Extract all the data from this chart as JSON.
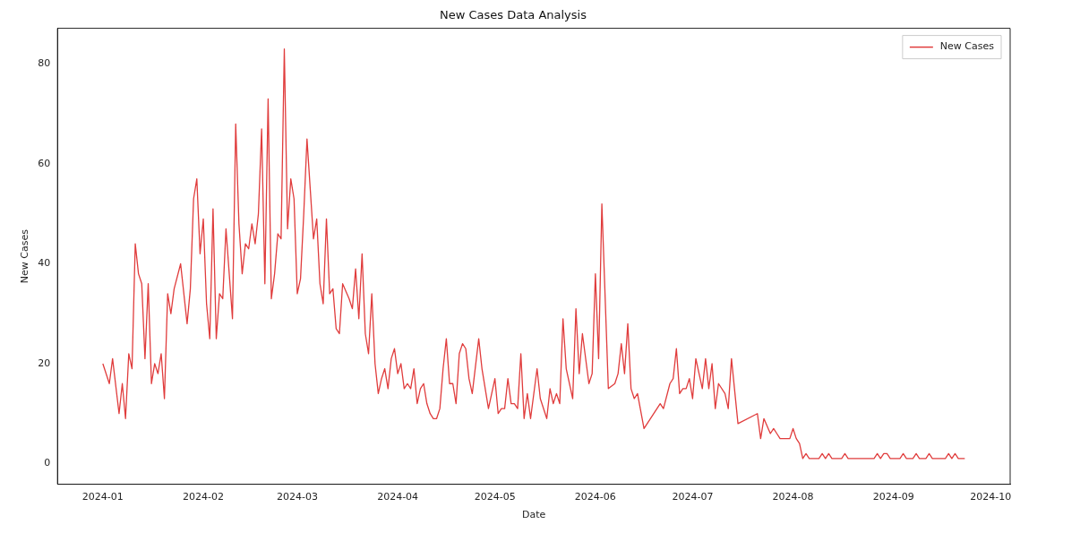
{
  "chart_data": {
    "type": "line",
    "title": "New Cases Data Analysis",
    "xlabel": "Date",
    "ylabel": "New Cases",
    "x": [
      "2024-01-01",
      "2024-01-03",
      "2024-01-04",
      "2024-01-06",
      "2024-01-07",
      "2024-01-08",
      "2024-01-09",
      "2024-01-10",
      "2024-01-11",
      "2024-01-12",
      "2024-01-13",
      "2024-01-14",
      "2024-01-15",
      "2024-01-16",
      "2024-01-17",
      "2024-01-18",
      "2024-01-19",
      "2024-01-20",
      "2024-01-21",
      "2024-01-22",
      "2024-01-23",
      "2024-01-25",
      "2024-01-27",
      "2024-01-28",
      "2024-01-29",
      "2024-01-30",
      "2024-01-31",
      "2024-02-01",
      "2024-02-02",
      "2024-02-03",
      "2024-02-04",
      "2024-02-05",
      "2024-02-06",
      "2024-02-07",
      "2024-02-08",
      "2024-02-10",
      "2024-02-11",
      "2024-02-12",
      "2024-02-13",
      "2024-02-14",
      "2024-02-15",
      "2024-02-16",
      "2024-02-17",
      "2024-02-18",
      "2024-02-19",
      "2024-02-20",
      "2024-02-21",
      "2024-02-22",
      "2024-02-23",
      "2024-02-24",
      "2024-02-25",
      "2024-02-26",
      "2024-02-27",
      "2024-02-28",
      "2024-02-29",
      "2024-03-01",
      "2024-03-02",
      "2024-03-03",
      "2024-03-04",
      "2024-03-05",
      "2024-03-06",
      "2024-03-07",
      "2024-03-08",
      "2024-03-09",
      "2024-03-10",
      "2024-03-11",
      "2024-03-12",
      "2024-03-13",
      "2024-03-14",
      "2024-03-15",
      "2024-03-17",
      "2024-03-18",
      "2024-03-19",
      "2024-03-20",
      "2024-03-21",
      "2024-03-22",
      "2024-03-23",
      "2024-03-24",
      "2024-03-25",
      "2024-03-26",
      "2024-03-27",
      "2024-03-28",
      "2024-03-29",
      "2024-03-30",
      "2024-03-31",
      "2024-04-01",
      "2024-04-02",
      "2024-04-03",
      "2024-04-04",
      "2024-04-05",
      "2024-04-06",
      "2024-04-07",
      "2024-04-08",
      "2024-04-09",
      "2024-04-10",
      "2024-04-11",
      "2024-04-12",
      "2024-04-13",
      "2024-04-14",
      "2024-04-15",
      "2024-04-16",
      "2024-04-17",
      "2024-04-18",
      "2024-04-19",
      "2024-04-20",
      "2024-04-21",
      "2024-04-22",
      "2024-04-23",
      "2024-04-24",
      "2024-04-26",
      "2024-04-27",
      "2024-04-29",
      "2024-04-30",
      "2024-05-01",
      "2024-05-02",
      "2024-05-03",
      "2024-05-04",
      "2024-05-05",
      "2024-05-06",
      "2024-05-07",
      "2024-05-08",
      "2024-05-09",
      "2024-05-10",
      "2024-05-11",
      "2024-05-12",
      "2024-05-14",
      "2024-05-15",
      "2024-05-17",
      "2024-05-18",
      "2024-05-19",
      "2024-05-20",
      "2024-05-21",
      "2024-05-22",
      "2024-05-23",
      "2024-05-25",
      "2024-05-26",
      "2024-05-27",
      "2024-05-28",
      "2024-05-30",
      "2024-05-31",
      "2024-06-01",
      "2024-06-02",
      "2024-06-03",
      "2024-06-05",
      "2024-06-07",
      "2024-06-08",
      "2024-06-09",
      "2024-06-10",
      "2024-06-11",
      "2024-06-12",
      "2024-06-13",
      "2024-06-14",
      "2024-06-16",
      "2024-06-21",
      "2024-06-22",
      "2024-06-24",
      "2024-06-25",
      "2024-06-26",
      "2024-06-27",
      "2024-06-28",
      "2024-06-29",
      "2024-06-30",
      "2024-07-01",
      "2024-07-02",
      "2024-07-03",
      "2024-07-04",
      "2024-07-05",
      "2024-07-06",
      "2024-07-07",
      "2024-07-08",
      "2024-07-09",
      "2024-07-11",
      "2024-07-12",
      "2024-07-13",
      "2024-07-15",
      "2024-07-21",
      "2024-07-22",
      "2024-07-23",
      "2024-07-25",
      "2024-07-26",
      "2024-07-27",
      "2024-07-28",
      "2024-07-31",
      "2024-08-01",
      "2024-08-02",
      "2024-08-03",
      "2024-08-04",
      "2024-08-05",
      "2024-08-06",
      "2024-08-09",
      "2024-08-10",
      "2024-08-11",
      "2024-08-12",
      "2024-08-13",
      "2024-08-16",
      "2024-08-17",
      "2024-08-18",
      "2024-08-26",
      "2024-08-27",
      "2024-08-28",
      "2024-08-29",
      "2024-08-30",
      "2024-08-31",
      "2024-09-03",
      "2024-09-04",
      "2024-09-05",
      "2024-09-07",
      "2024-09-08",
      "2024-09-09",
      "2024-09-11",
      "2024-09-12",
      "2024-09-13",
      "2024-09-17",
      "2024-09-18",
      "2024-09-19",
      "2024-09-20",
      "2024-09-21",
      "2024-09-23"
    ],
    "series": [
      {
        "name": "New Cases",
        "color": "#e03c3c",
        "values": [
          20,
          16,
          21,
          10,
          16,
          9,
          22,
          19,
          44,
          38,
          36,
          21,
          36,
          16,
          20,
          18,
          22,
          13,
          34,
          30,
          35,
          40,
          28,
          35,
          53,
          57,
          42,
          49,
          32,
          25,
          51,
          25,
          34,
          33,
          47,
          29,
          68,
          48,
          38,
          44,
          43,
          48,
          44,
          50,
          67,
          36,
          73,
          33,
          38,
          46,
          45,
          83,
          47,
          57,
          53,
          34,
          37,
          50,
          65,
          55,
          45,
          49,
          36,
          32,
          49,
          34,
          35,
          27,
          26,
          36,
          33,
          31,
          39,
          29,
          42,
          26,
          22,
          34,
          20,
          14,
          17,
          19,
          15,
          21,
          23,
          18,
          20,
          15,
          16,
          15,
          19,
          12,
          15,
          16,
          12,
          10,
          9,
          9,
          11,
          19,
          25,
          16,
          16,
          12,
          22,
          24,
          23,
          17,
          14,
          25,
          19,
          11,
          14,
          17,
          10,
          11,
          11,
          17,
          12,
          12,
          11,
          22,
          9,
          14,
          9,
          19,
          13,
          9,
          15,
          12,
          14,
          12,
          29,
          19,
          13,
          31,
          18,
          26,
          16,
          18,
          38,
          21,
          52,
          15,
          16,
          18,
          24,
          18,
          28,
          15,
          13,
          14,
          7,
          12,
          11,
          16,
          17,
          23,
          14,
          15,
          15,
          17,
          13,
          21,
          18,
          15,
          21,
          15,
          20,
          11,
          16,
          14,
          11,
          21,
          8,
          10,
          5,
          9,
          6,
          7,
          6,
          5,
          5,
          7,
          5,
          4,
          1,
          2,
          1,
          1,
          2,
          1,
          2,
          1,
          1,
          2,
          1,
          1,
          2,
          1,
          2,
          2,
          1,
          1,
          2,
          1,
          1,
          2,
          1,
          1,
          2,
          1,
          1,
          2,
          1,
          2,
          1,
          1
        ]
      }
    ],
    "xlim": [
      "2023-12-18",
      "2024-10-07"
    ],
    "xticks": [
      "2024-01",
      "2024-02",
      "2024-03",
      "2024-04",
      "2024-05",
      "2024-06",
      "2024-07",
      "2024-08",
      "2024-09",
      "2024-10"
    ],
    "ylim": [
      -4.15,
      87.15
    ],
    "yticks": [
      0,
      20,
      40,
      60,
      80
    ],
    "grid": false,
    "legend": "top right",
    "line_style": "solid",
    "marker": "none"
  }
}
